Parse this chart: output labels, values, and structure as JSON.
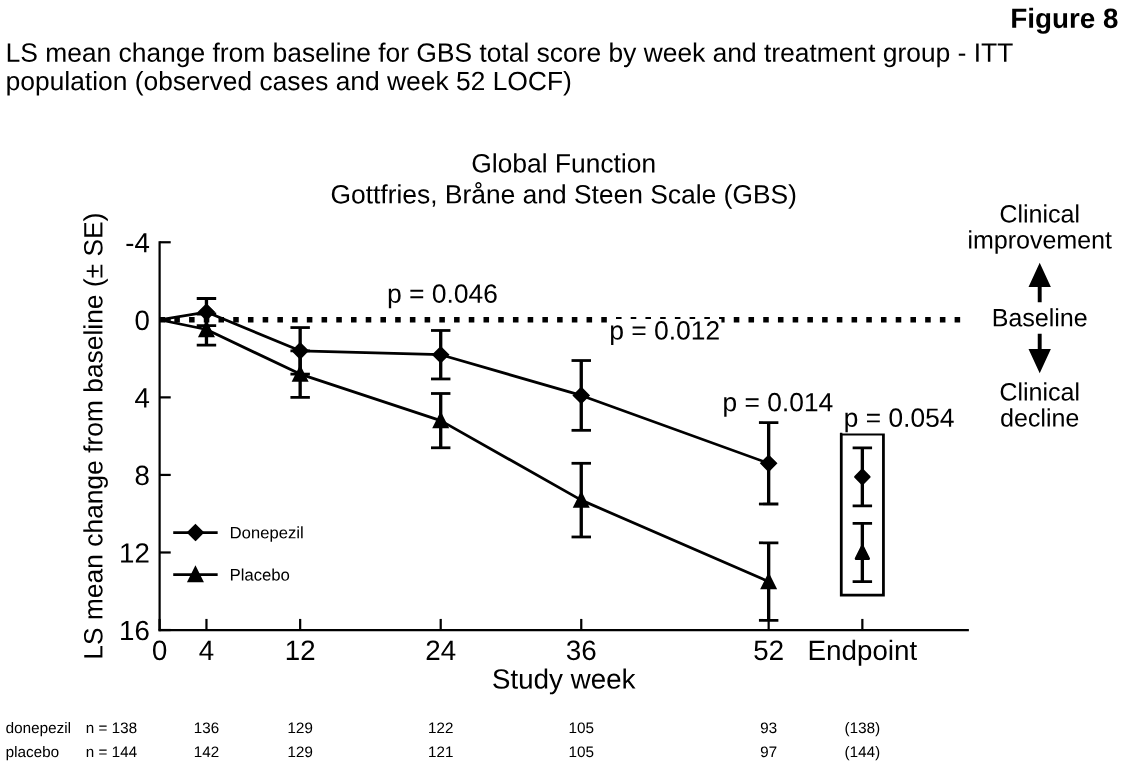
{
  "chart_data": {
    "type": "line",
    "title": "LS mean change from baseline for GBS total score by week and treatment group - ITT population (observed cases and week 52 LOCF)",
    "subtitle": "Global Function\nGottfries, Bråne and Steen Scale (GBS)",
    "xlabel": "Study week",
    "ylabel": "LS mean change from baseline (± SE)",
    "series": [
      {
        "name": "Donepezil",
        "color": "#000000",
        "marker": "diamond",
        "x": [
          0,
          4,
          12,
          24,
          36,
          52
        ],
        "values": [
          0,
          -0.4,
          1.6,
          1.8,
          3.9,
          7.4
        ],
        "errors": [
          null,
          0.7,
          1.2,
          1.25,
          1.8,
          2.1
        ]
      },
      {
        "name": "Placebo",
        "color": "#000000",
        "marker": "triangle",
        "x": [
          0,
          4,
          12,
          24,
          36,
          52
        ],
        "values": [
          0,
          0.5,
          2.8,
          5.2,
          9.3,
          13.5
        ],
        "errors": [
          null,
          0.8,
          1.2,
          1.4,
          1.9,
          2.0
        ]
      },
      {
        "type": "scatter",
        "color": "#000000",
        "marker": "diamond",
        "x": [
          60
        ],
        "values": [
          8.1
        ],
        "errors": [
          1.5
        ]
      },
      {
        "type": "scatter",
        "color": "#000000",
        "marker": "triangle",
        "x": [
          60
        ],
        "values": [
          12.0
        ],
        "errors": [
          1.5
        ]
      }
    ],
    "xlim": [
      0,
      69
    ],
    "xticks": [
      0,
      4,
      12,
      24,
      36,
      52,
      {
        "value": 60,
        "label": "Endpoint"
      }
    ],
    "ylim": [
      16,
      -4
    ],
    "yticks": [
      -4,
      0,
      4,
      8,
      12,
      16
    ],
    "ref_lines": [
      {
        "axis": "y",
        "value": 0,
        "label": "Baseline",
        "line_style": "dotted",
        "color": "#000000"
      }
    ],
    "legend": "bottom left",
    "grid": false,
    "line_style": "solid",
    "annotations": [
      "Figure 8",
      "Clinical improvement",
      "Clinical decline",
      "p = 0.046",
      "p = 0.012",
      "p = 0.014",
      "p = 0.054",
      "donepezil",
      "placebo",
      "n = 138",
      "136",
      "129",
      "122",
      "105",
      "93",
      "(138)",
      "n = 144",
      "142",
      "129",
      "121",
      "105",
      "97",
      "(144)"
    ]
  }
}
